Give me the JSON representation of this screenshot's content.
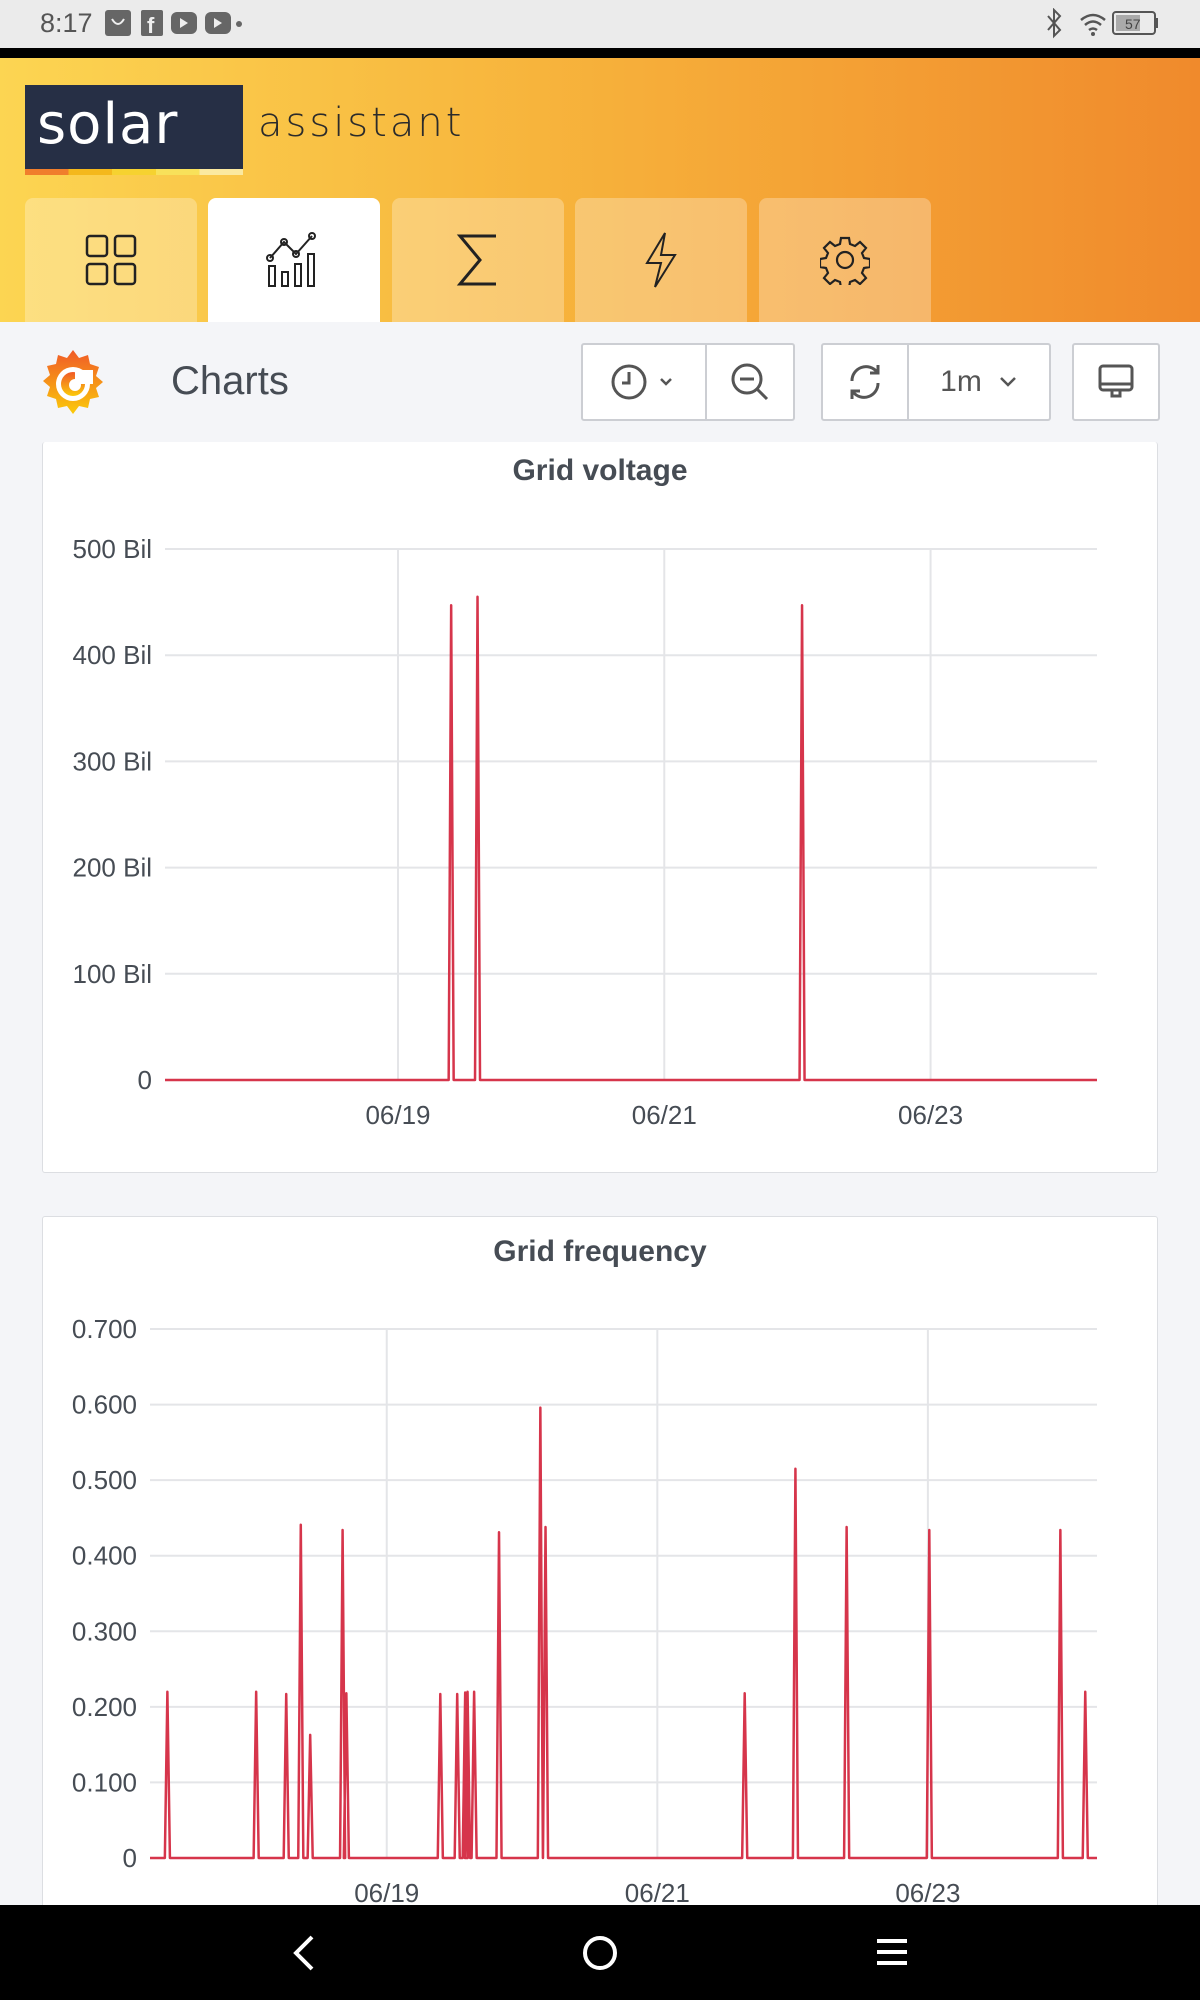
{
  "status_bar": {
    "time": "8:17",
    "battery": "57",
    "icons": [
      "notification-icon",
      "facebook-icon",
      "youtube-icon",
      "youtube-icon",
      "dot-icon",
      "bluetooth-icon",
      "wifi-icon",
      "battery-icon"
    ]
  },
  "app": {
    "logo_word": "solar",
    "logo_suffix": "assistant",
    "tabs": [
      {
        "icon": "dashboard-grid-icon",
        "active": false
      },
      {
        "icon": "charts-icon",
        "active": true
      },
      {
        "icon": "sum-icon",
        "active": false
      },
      {
        "icon": "lightning-icon",
        "active": false
      },
      {
        "icon": "gear-icon",
        "active": false
      }
    ]
  },
  "toolbar": {
    "title": "Charts",
    "refresh_interval": "1m"
  },
  "colors": {
    "series": "#d6354b",
    "accent": "#f08a2c"
  },
  "chart_data": [
    {
      "type": "line",
      "title": "Grid voltage",
      "xlim": [
        "06/17 06:00",
        "06/24 06:00"
      ],
      "x_ticks": [
        "06/19",
        "06/21",
        "06/23"
      ],
      "ylim": [
        0,
        500
      ],
      "y_ticks": [
        "0",
        "100 Bil",
        "200 Bil",
        "300 Bil",
        "400 Bil",
        "500 Bil"
      ],
      "y_unit": "Bil",
      "grid": true,
      "points": [
        {
          "x": "06/19 09:35",
          "y": 447
        },
        {
          "x": "06/19 14:20",
          "y": 455
        },
        {
          "x": "06/22 00:50",
          "y": 447
        }
      ],
      "baseline": 0
    },
    {
      "type": "line",
      "title": "Grid frequency",
      "xlim": [
        "06/17 06:00",
        "06/24 06:00"
      ],
      "x_ticks": [
        "06/19",
        "06/21",
        "06/23"
      ],
      "ylim": [
        0,
        0.7
      ],
      "y_ticks": [
        "0",
        "0.100",
        "0.200",
        "0.300",
        "0.400",
        "0.500",
        "0.600",
        "0.700"
      ],
      "grid": true,
      "points": [
        {
          "x": "06/17 09:05",
          "y": 0.22
        },
        {
          "x": "06/18 00:50",
          "y": 0.22
        },
        {
          "x": "06/18 06:10",
          "y": 0.217
        },
        {
          "x": "06/18 08:45",
          "y": 0.441
        },
        {
          "x": "06/18 10:25",
          "y": 0.163
        },
        {
          "x": "06/18 16:10",
          "y": 0.434
        },
        {
          "x": "06/18 16:50",
          "y": 0.218
        },
        {
          "x": "06/19 09:30",
          "y": 0.217
        },
        {
          "x": "06/19 12:30",
          "y": 0.217
        },
        {
          "x": "06/19 13:55",
          "y": 0.219
        },
        {
          "x": "06/19 14:20",
          "y": 0.22
        },
        {
          "x": "06/19 15:30",
          "y": 0.22
        },
        {
          "x": "06/19 19:55",
          "y": 0.431
        },
        {
          "x": "06/20 03:15",
          "y": 0.596
        },
        {
          "x": "06/20 04:10",
          "y": 0.438
        },
        {
          "x": "06/21 15:30",
          "y": 0.218
        },
        {
          "x": "06/22 00:30",
          "y": 0.515
        },
        {
          "x": "06/22 09:35",
          "y": 0.438
        },
        {
          "x": "06/23 00:15",
          "y": 0.434
        },
        {
          "x": "06/23 23:30",
          "y": 0.434
        },
        {
          "x": "06/24 03:55",
          "y": 0.22
        }
      ],
      "baseline": 0
    }
  ],
  "nav_bar": {
    "icons": [
      "back-icon",
      "home-icon",
      "menu-icon"
    ]
  }
}
